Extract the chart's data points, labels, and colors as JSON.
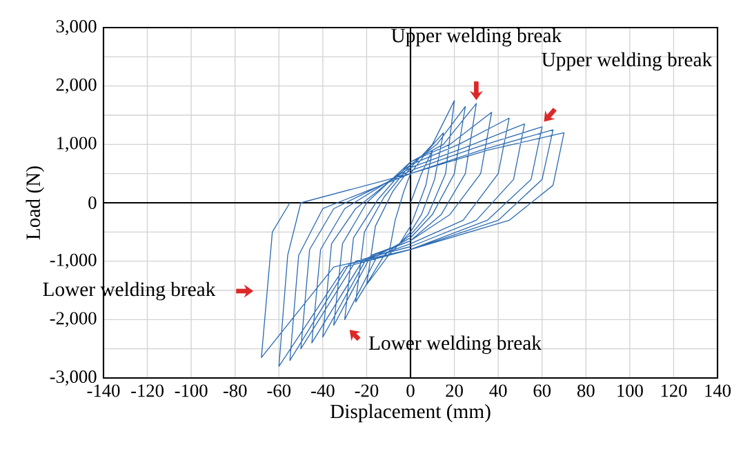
{
  "chart_data": {
    "type": "line",
    "xlabel": "Displacement (mm)",
    "ylabel": "Load (N)",
    "xlim": [
      -140,
      140
    ],
    "ylim": [
      -3000,
      3000
    ],
    "xticks": [
      -140,
      -120,
      -100,
      -80,
      -60,
      -40,
      -20,
      0,
      20,
      40,
      60,
      80,
      100,
      120,
      140
    ],
    "yticks": [
      {
        "value": -3000,
        "label": "-3,000"
      },
      {
        "value": -2000,
        "label": "-2,000"
      },
      {
        "value": -1000,
        "label": "-1,000"
      },
      0,
      {
        "value": 1000,
        "label": "1,000"
      },
      {
        "value": 2000,
        "label": "2,000"
      },
      {
        "value": 3000,
        "label": "3,000"
      }
    ],
    "grid": true,
    "marker": "none",
    "line_style": "solid",
    "series": [
      {
        "color": "#2e6db4",
        "x": [
          0,
          5,
          10,
          7,
          3,
          0,
          -5,
          -10,
          -7,
          -3,
          0,
          8,
          15,
          11,
          5,
          0,
          -10,
          -20,
          -16,
          -8,
          0,
          10,
          20,
          16,
          8,
          0,
          -12,
          -25,
          -21,
          -12,
          0,
          12,
          25,
          20,
          10,
          0,
          -15,
          -30,
          -26,
          -15,
          0,
          15,
          30,
          25,
          14,
          0,
          -18,
          -35,
          -31,
          -20,
          0,
          18,
          37,
          32,
          18,
          0,
          -20,
          -40,
          -36,
          -25,
          0,
          22,
          45,
          40,
          24,
          0,
          -22,
          -45,
          -41,
          -30,
          0,
          25,
          52,
          47,
          30,
          0,
          -25,
          -50,
          -46,
          -35,
          0,
          30,
          60,
          55,
          35,
          0,
          -28,
          -55,
          -51,
          -40,
          0,
          32,
          65,
          60,
          40,
          0,
          -30,
          -60,
          -56,
          -50,
          0,
          35,
          70,
          65,
          45,
          0,
          -35,
          -68,
          -63,
          -55
        ],
        "values": [
          0,
          500,
          900,
          300,
          -100,
          -400,
          -700,
          -900,
          -300,
          200,
          500,
          900,
          1200,
          400,
          -200,
          -500,
          -900,
          -1400,
          -400,
          200,
          600,
          1000,
          1750,
          500,
          -200,
          -550,
          -900,
          -1700,
          -500,
          100,
          650,
          1000,
          1650,
          500,
          -200,
          -600,
          -900,
          -2000,
          -600,
          50,
          700,
          1000,
          1700,
          500,
          -200,
          -650,
          -900,
          -2100,
          -700,
          0,
          700,
          1000,
          1550,
          500,
          -200,
          -650,
          -950,
          -2300,
          -700,
          -100,
          650,
          1000,
          1450,
          500,
          -300,
          -700,
          -1000,
          -2400,
          -800,
          -100,
          600,
          950,
          1350,
          400,
          -300,
          -750,
          -1000,
          -2500,
          -800,
          -100,
          550,
          950,
          1300,
          400,
          -300,
          -800,
          -1050,
          -2700,
          -900,
          -100,
          500,
          900,
          1250,
          400,
          -300,
          -800,
          -1100,
          -2800,
          -900,
          0,
          500,
          900,
          1200,
          300,
          -300,
          -800,
          -1100,
          -2650,
          -500,
          0
        ]
      }
    ],
    "annotations": [
      {
        "text": "Upper welding break",
        "x": 30,
        "y": 1700
      },
      {
        "text": "Upper welding break",
        "x": 60,
        "y": 1350
      },
      "Lower welding break",
      "Lower welding break"
    ]
  }
}
